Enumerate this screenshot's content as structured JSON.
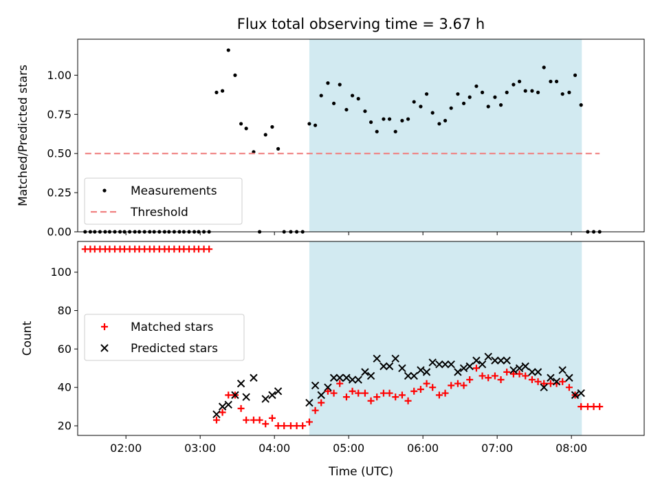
{
  "chart_data": [
    {
      "type": "scatter",
      "title": "Flux total observing time = 3.67 h",
      "xlabel": "",
      "ylabel": "Matched/Predicted stars",
      "ylim": [
        0,
        1.23
      ],
      "yticks": [
        "0.00",
        "0.25",
        "0.50",
        "0.75",
        "1.00"
      ],
      "ytick_values": [
        0,
        0.25,
        0.5,
        0.75,
        1.0
      ],
      "x_axis": "time (UTC, hours)",
      "xlim": [
        1.35,
        8.98
      ],
      "highlight_span": [
        4.47,
        8.14
      ],
      "highlight_color": "#add8e6",
      "legend_position": "lower left",
      "series": [
        {
          "name": "Measurements",
          "marker": "dot",
          "color": "#000000",
          "x": [
            1.45,
            1.52,
            1.58,
            1.65,
            1.72,
            1.78,
            1.85,
            1.92,
            1.98,
            2.05,
            2.12,
            2.18,
            2.25,
            2.32,
            2.38,
            2.45,
            2.52,
            2.58,
            2.65,
            2.72,
            2.78,
            2.85,
            2.92,
            2.98,
            3.05,
            3.12,
            3.22,
            3.3,
            3.38,
            3.47,
            3.55,
            3.62,
            3.72,
            3.8,
            3.88,
            3.97,
            4.05,
            4.13,
            4.22,
            4.3,
            4.38,
            4.47,
            4.55,
            4.63,
            4.72,
            4.8,
            4.88,
            4.97,
            5.05,
            5.13,
            5.22,
            5.3,
            5.38,
            5.47,
            5.55,
            5.63,
            5.72,
            5.8,
            5.88,
            5.97,
            6.05,
            6.13,
            6.22,
            6.3,
            6.38,
            6.47,
            6.55,
            6.63,
            6.72,
            6.8,
            6.88,
            6.97,
            7.05,
            7.13,
            7.22,
            7.3,
            7.38,
            7.47,
            7.55,
            7.63,
            7.72,
            7.8,
            7.88,
            7.97,
            8.05,
            8.13,
            8.22,
            8.3,
            8.38
          ],
          "y": [
            0,
            0,
            0,
            0,
            0,
            0,
            0,
            0,
            0,
            0,
            0,
            0,
            0,
            0,
            0,
            0,
            0,
            0,
            0,
            0,
            0,
            0,
            0,
            0,
            0,
            0,
            0.89,
            0.9,
            1.16,
            1.0,
            0.69,
            0.66,
            0.51,
            0,
            0.62,
            0.67,
            0.53,
            0,
            0,
            0,
            0,
            0.69,
            0.68,
            0.87,
            0.95,
            0.82,
            0.94,
            0.78,
            0.87,
            0.85,
            0.77,
            0.7,
            0.64,
            0.72,
            0.72,
            0.64,
            0.71,
            0.72,
            0.83,
            0.8,
            0.88,
            0.76,
            0.69,
            0.71,
            0.79,
            0.88,
            0.82,
            0.86,
            0.93,
            0.89,
            0.8,
            0.86,
            0.81,
            0.89,
            0.94,
            0.96,
            0.9,
            0.9,
            0.89,
            1.05,
            0.96,
            0.96,
            0.88,
            0.89,
            1.0,
            0.81,
            0,
            0,
            0
          ]
        },
        {
          "name": "Threshold",
          "marker": "dashed-line",
          "color": "#f08080",
          "x": [
            1.45,
            8.38
          ],
          "y": [
            0.5,
            0.5
          ]
        }
      ]
    },
    {
      "type": "scatter",
      "title": "",
      "xlabel": "Time (UTC)",
      "ylabel": "Count",
      "ylim": [
        15,
        116
      ],
      "yticks": [
        "20",
        "40",
        "60",
        "80",
        "100"
      ],
      "ytick_values": [
        20,
        40,
        60,
        80,
        100
      ],
      "xticks": [
        "02:00",
        "03:00",
        "04:00",
        "05:00",
        "06:00",
        "07:00",
        "08:00"
      ],
      "xtick_values": [
        2,
        3,
        4,
        5,
        6,
        7,
        8
      ],
      "x_axis": "time (UTC, hours)",
      "xlim": [
        1.35,
        8.98
      ],
      "highlight_span": [
        4.47,
        8.14
      ],
      "highlight_color": "#add8e6",
      "legend_position": "center left",
      "series": [
        {
          "name": "Matched stars",
          "marker": "plus",
          "color": "#ff0000",
          "x": [
            1.45,
            1.52,
            1.58,
            1.65,
            1.72,
            1.78,
            1.85,
            1.92,
            1.98,
            2.05,
            2.12,
            2.18,
            2.25,
            2.32,
            2.38,
            2.45,
            2.52,
            2.58,
            2.65,
            2.72,
            2.78,
            2.85,
            2.92,
            2.98,
            3.05,
            3.12,
            3.22,
            3.3,
            3.38,
            3.47,
            3.55,
            3.62,
            3.72,
            3.8,
            3.88,
            3.97,
            4.05,
            4.13,
            4.22,
            4.3,
            4.38,
            4.47,
            4.55,
            4.63,
            4.72,
            4.8,
            4.88,
            4.97,
            5.05,
            5.13,
            5.22,
            5.3,
            5.38,
            5.47,
            5.55,
            5.63,
            5.72,
            5.8,
            5.88,
            5.97,
            6.05,
            6.13,
            6.22,
            6.3,
            6.38,
            6.47,
            6.55,
            6.63,
            6.72,
            6.8,
            6.88,
            6.97,
            7.05,
            7.13,
            7.22,
            7.3,
            7.38,
            7.47,
            7.55,
            7.63,
            7.72,
            7.8,
            7.88,
            7.97,
            8.05,
            8.13,
            8.22,
            8.3,
            8.38
          ],
          "y": [
            112,
            112,
            112,
            112,
            112,
            112,
            112,
            112,
            112,
            112,
            112,
            112,
            112,
            112,
            112,
            112,
            112,
            112,
            112,
            112,
            112,
            112,
            112,
            112,
            112,
            112,
            23,
            27,
            36,
            36,
            29,
            23,
            23,
            23,
            21,
            24,
            20,
            20,
            20,
            20,
            20,
            22,
            28,
            32,
            38,
            37,
            42,
            35,
            38,
            37,
            37,
            33,
            35,
            37,
            37,
            35,
            36,
            33,
            38,
            39,
            42,
            40,
            36,
            37,
            41,
            42,
            41,
            44,
            50,
            46,
            45,
            46,
            44,
            48,
            47,
            47,
            46,
            44,
            43,
            42,
            42,
            42,
            43,
            40,
            36,
            30,
            30,
            30,
            30
          ]
        },
        {
          "name": "Predicted stars",
          "marker": "x",
          "color": "#000000",
          "x": [
            3.22,
            3.3,
            3.38,
            3.47,
            3.55,
            3.62,
            3.72,
            3.88,
            3.97,
            4.05,
            4.47,
            4.55,
            4.63,
            4.72,
            4.8,
            4.88,
            4.97,
            5.05,
            5.13,
            5.22,
            5.3,
            5.38,
            5.47,
            5.55,
            5.63,
            5.72,
            5.8,
            5.88,
            5.97,
            6.05,
            6.13,
            6.22,
            6.3,
            6.38,
            6.47,
            6.55,
            6.63,
            6.72,
            6.8,
            6.88,
            6.97,
            7.05,
            7.13,
            7.22,
            7.3,
            7.38,
            7.47,
            7.55,
            7.63,
            7.72,
            7.8,
            7.88,
            7.97,
            8.05,
            8.13
          ],
          "y": [
            26,
            30,
            31,
            36,
            42,
            35,
            45,
            34,
            36,
            38,
            32,
            41,
            36,
            40,
            45,
            45,
            45,
            44,
            44,
            48,
            46,
            55,
            51,
            51,
            55,
            50,
            46,
            46,
            49,
            48,
            53,
            52,
            52,
            52,
            48,
            50,
            51,
            54,
            52,
            56,
            54,
            54,
            54,
            49,
            50,
            51,
            48,
            48,
            40,
            45,
            43,
            49,
            45,
            36,
            37
          ]
        }
      ]
    }
  ]
}
